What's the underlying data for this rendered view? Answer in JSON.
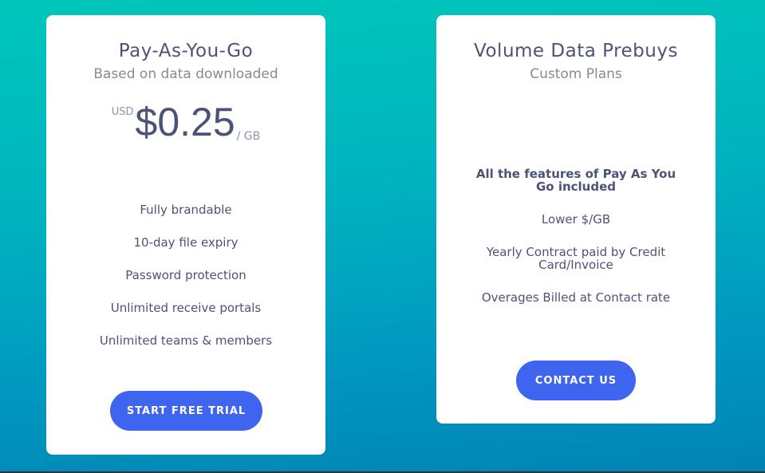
{
  "plans": [
    {
      "title": "Pay-As-You-Go",
      "subtitle": "Based on data downloaded",
      "currency": "USD",
      "price": "$0.25",
      "unit": "/ GB",
      "features": [
        "Fully brandable",
        "10-day file expiry",
        "Password protection",
        "Unlimited receive portals",
        "Unlimited teams & members"
      ],
      "button": "START FREE TRIAL"
    },
    {
      "title": "Volume Data Prebuys",
      "subtitle": "Custom Plans",
      "features": [
        "All the features of Pay As You Go included",
        "Lower $/GB",
        "Yearly Contract paid by Credit Card/Invoice",
        "Overages Billed at Contact rate"
      ],
      "button": "CONTACT US"
    }
  ],
  "colors": {
    "accent": "#3f65f0",
    "text": "#4d5378",
    "bg_top": "#00c6bb",
    "bg_bottom": "#0083b3"
  }
}
